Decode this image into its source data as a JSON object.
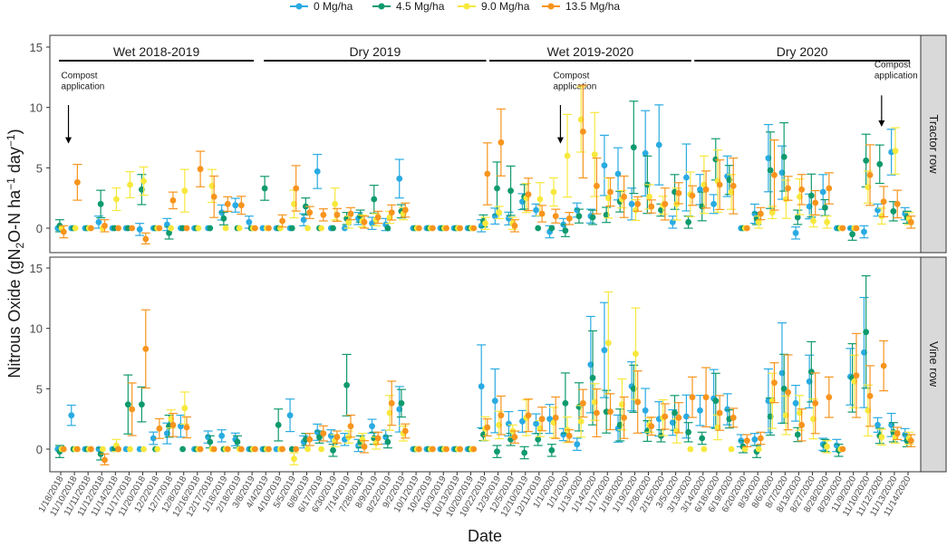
{
  "legend": {
    "items": [
      {
        "label": "0 Mg/ha",
        "color": "#29abe2"
      },
      {
        "label": "4.5 Mg/ha",
        "color": "#0f9a6e"
      },
      {
        "label": "9.0 Mg/ha",
        "color": "#f7e83c"
      },
      {
        "label": "13.5 Mg/ha",
        "color": "#f7941d"
      }
    ]
  },
  "axes": {
    "ylabel_main": "Nitrous Oxide (gN",
    "ylabel_sub1": "2",
    "ylabel_mid": "O-N ha",
    "ylabel_sup1": "−1",
    "ylabel_day": " day",
    "ylabel_sup2": "−1",
    "ylabel_end": ")",
    "xlabel": "Date"
  },
  "chart_data": {
    "type": "scatter",
    "title": "",
    "xlabel": "Date",
    "ylabel": "Nitrous Oxide (gN2O-N ha−1 day−1)",
    "ylim": [
      -1.5,
      15.5
    ],
    "yticks": [
      0,
      5,
      10,
      15
    ],
    "x_labels": [
      "1/18/2018",
      "11/10/2018",
      "11/11/2018",
      "11/12/2018",
      "11/14/2018",
      "11/17/2018",
      "11/20/2018",
      "12/2/2018",
      "12/7/2018",
      "12/8/2018",
      "12/16/2018",
      "12/17/2018",
      "1/18/2019",
      "2/18/2019",
      "3/8/2019",
      "4/4/2019",
      "4/10/2019",
      "5/5/2019",
      "6/8/2019",
      "6/17/2019",
      "6/30/2019",
      "7/14/2019",
      "7/28/2019",
      "8/9/2019",
      "8/22/2019",
      "9/2/2019",
      "10/1/2019",
      "10/2/2019",
      "10/3/2019",
      "10/13/2019",
      "10/20/2019",
      "10/22/2019",
      "12/3/2019",
      "12/5/2019",
      "12/10/2019",
      "12/11/2019",
      "1/1/2020",
      "1/1/2020",
      "1/13/2020",
      "1/14/2020",
      "1/17/2020",
      "1/18/2020",
      "1/19/2020",
      "1/28/2020",
      "2/15/2020",
      "3/5/2020",
      "3/13/2020",
      "3/14/2020",
      "6/18/2020",
      "6/19/2020",
      "6/20/2020",
      "8/3/2020",
      "8/6/2020",
      "8/7/2020",
      "8/13/2020",
      "8/27/2020",
      "8/28/2020",
      "8/29/2020",
      "11/9/2020",
      "11/10/2020",
      "11/12/2020",
      "11/13/2020",
      "11/14/2020"
    ],
    "series_names": [
      "0 Mg/ha",
      "4.5 Mg/ha",
      "9.0 Mg/ha",
      "13.5 Mg/ha"
    ],
    "panels": [
      {
        "name": "Tractor row",
        "periods": [
          {
            "label": "Wet 2018-2019",
            "from_x": 0,
            "to_x": 14
          },
          {
            "label": "Dry 2019",
            "from_x": 15,
            "to_x": 31
          },
          {
            "label": "Wet 2019-2020",
            "from_x": 31.5,
            "to_x": 46
          },
          {
            "label": "Dry 2020",
            "from_x": 46.5,
            "to_x": 62
          }
        ],
        "annotations": [
          {
            "line1": "Compost",
            "line2": "application",
            "x": 0.5,
            "y_text": 12.4,
            "arrow_from": 10.2,
            "arrow_to": 7.0
          },
          {
            "line1": "Compost",
            "line2": "application",
            "x": 36.5,
            "y_text": 12.4,
            "arrow_from": 10.2,
            "arrow_to": 7.0
          },
          {
            "line1": "Compost",
            "line2": "application",
            "x": 60,
            "y_text": 13.3,
            "arrow_from": 11.0,
            "arrow_to": 8.4
          }
        ],
        "series": [
          {
            "name": "0 Mg/ha",
            "values": [
              0,
              0,
              0,
              0.5,
              0,
              0,
              -0.1,
              0,
              0.3,
              0,
              0,
              0,
              1.3,
              1.9,
              0.5,
              0,
              0,
              0,
              0.7,
              4.7,
              0,
              0,
              0.8,
              0.4,
              0.3,
              4.1,
              0,
              0,
              0,
              0,
              0,
              0.2,
              1.0,
              0.8,
              2.2,
              1.5,
              -0.3,
              0.3,
              1.5,
              1.0,
              5.2,
              4.5,
              2.0,
              6.2,
              6.9,
              0.5,
              4.2,
              3.2,
              2.0,
              4.3,
              0,
              1.2,
              5.8,
              4.6,
              -0.4,
              1.8,
              3.0,
              0,
              0,
              -0.3,
              1.5,
              6.3,
              1.2
            ]
          },
          {
            "name": "4.5 Mg/ha",
            "values": [
              0.2,
              0,
              0,
              2.0,
              0,
              0,
              3.2,
              0,
              -0.4,
              0,
              0,
              0,
              0.8,
              0,
              0,
              3.3,
              0,
              0,
              1.8,
              0,
              0,
              0.8,
              1.0,
              2.4,
              0,
              1.4,
              0,
              0,
              0,
              0,
              0,
              0.6,
              3.3,
              3.1,
              2.6,
              0,
              0,
              -0.2,
              1.0,
              0.9,
              1.1,
              2.2,
              6.7,
              3.6,
              1.5,
              3.0,
              0.5,
              1.8,
              5.7,
              4.0,
              0,
              0.8,
              4.8,
              5.9,
              0.9,
              2.7,
              1.7,
              0,
              -0.5,
              5.6,
              5.3,
              1.4,
              0.9
            ]
          },
          {
            "name": "9.0 Mg/ha",
            "values": [
              0,
              0,
              0,
              0,
              2.4,
              3.6,
              3.9,
              0,
              0,
              3.1,
              0,
              3.5,
              0,
              0,
              0,
              0,
              0,
              2.0,
              0,
              0,
              2.0,
              0.5,
              0.6,
              0.7,
              0.9,
              1.2,
              0,
              0,
              0,
              0,
              0,
              0.4,
              1.3,
              0.4,
              2.5,
              2.4,
              3.0,
              6.0,
              9.0,
              6.1,
              2.5,
              2.4,
              1.5,
              2.6,
              1.9,
              2.0,
              2.8,
              3.6,
              3.9,
              3.0,
              0,
              0.5,
              1.3,
              2.4,
              2.6,
              0.6,
              0.5,
              0,
              0,
              3.4,
              1.0,
              6.4,
              0.8
            ]
          },
          {
            "name": "13.5 Mg/ha",
            "values": [
              -0.3,
              3.8,
              0,
              0.2,
              0,
              0,
              -0.9,
              0,
              2.3,
              0,
              4.9,
              2.6,
              2.0,
              1.9,
              0,
              0,
              0.6,
              3.3,
              1.3,
              1.1,
              1.1,
              1.2,
              0.5,
              0.9,
              1.3,
              1.5,
              0,
              0,
              0,
              0,
              0,
              4.5,
              7.1,
              0.2,
              2.8,
              1.2,
              1.0,
              0.8,
              8.0,
              3.5,
              3.0,
              2.6,
              2.0,
              1.8,
              2.0,
              2.9,
              2.7,
              3.2,
              3.6,
              3.5,
              0,
              1.2,
              4.4,
              3.3,
              3.2,
              2.1,
              3.3,
              0,
              0,
              4.4,
              2.2,
              2.0,
              0.5
            ]
          }
        ]
      },
      {
        "name": "Vine row",
        "periods": [],
        "annotations": [],
        "series": [
          {
            "name": "0 Mg/ha",
            "values": [
              0,
              2.8,
              0,
              0,
              0,
              0,
              0,
              0.9,
              1.3,
              1.9,
              0,
              1.0,
              1.1,
              0.8,
              0,
              0,
              0,
              2.8,
              0.6,
              1.4,
              1.1,
              0.8,
              0.3,
              1.9,
              1.0,
              3.3,
              0,
              0,
              0,
              0,
              0,
              5.2,
              4.0,
              2.1,
              2.3,
              2.1,
              2.5,
              1.2,
              0.4,
              7.0,
              8.2,
              1.7,
              5.2,
              3.2,
              2.5,
              2.2,
              2.7,
              3.2,
              4.2,
              3.3,
              0.7,
              0.8,
              4.0,
              6.3,
              3.8,
              5.6,
              0.4,
              0.3,
              6.0,
              8.0,
              2.0,
              2.0,
              1.2
            ]
          },
          {
            "name": "4.5 Mg/ha",
            "values": [
              -0.2,
              0,
              0,
              -0.4,
              0,
              3.7,
              3.7,
              0,
              1.9,
              0,
              0,
              0.6,
              0,
              0.6,
              0,
              0,
              2.0,
              0,
              0.8,
              1.0,
              -0.1,
              5.3,
              0.6,
              0.9,
              0.6,
              3.8,
              0,
              0,
              0,
              0,
              0,
              1.2,
              -0.2,
              0.8,
              -0.3,
              0.8,
              -0.1,
              3.8,
              3.5,
              5.9,
              3.1,
              2.0,
              5.0,
              1.5,
              1.1,
              3.0,
              1.4,
              0.9,
              4.0,
              2.5,
              0.2,
              -0.2,
              2.7,
              5.0,
              1.2,
              6.4,
              0.3,
              -0.1,
              5.9,
              9.7,
              1.1,
              1.4,
              0.7
            ]
          },
          {
            "name": "9.0 Mg/ha",
            "values": [
              0,
              0,
              0,
              0,
              0.3,
              0,
              0,
              0,
              2.5,
              3.4,
              0,
              0,
              0,
              0,
              0,
              0,
              0,
              -0.8,
              0,
              0,
              0.7,
              1.0,
              0.8,
              0.5,
              3.0,
              1.3,
              0,
              0,
              0,
              0,
              0,
              1.7,
              2.0,
              1.5,
              2.6,
              1.7,
              2.2,
              1.6,
              2.3,
              3.9,
              8.8,
              3.7,
              7.9,
              2.0,
              2.6,
              1.5,
              0,
              0,
              1.8,
              0,
              0,
              0,
              4.0,
              2.8,
              3.0,
              2.5,
              0.2,
              0,
              5.6,
              3.2,
              1.0,
              1.0,
              0.9
            ]
          },
          {
            "name": "13.5 Mg/ha",
            "values": [
              0,
              0,
              0,
              -0.9,
              0,
              3.3,
              8.3,
              1.7,
              2.0,
              1.8,
              0,
              0,
              0,
              0,
              0,
              0,
              0,
              0,
              0.8,
              1.3,
              1.0,
              1.9,
              0.2,
              0.9,
              3.8,
              1.5,
              0,
              0,
              0,
              0,
              0,
              1.8,
              2.8,
              1.0,
              2.8,
              2.5,
              2.6,
              1.1,
              3.8,
              3.0,
              3.1,
              2.6,
              3.9,
              1.9,
              2.7,
              2.6,
              4.3,
              4.3,
              3.0,
              2.6,
              0.7,
              0.9,
              5.5,
              4.7,
              2.0,
              3.8,
              4.3,
              0,
              6.1,
              4.4,
              6.9,
              1.3,
              0.7
            ]
          }
        ]
      }
    ]
  }
}
